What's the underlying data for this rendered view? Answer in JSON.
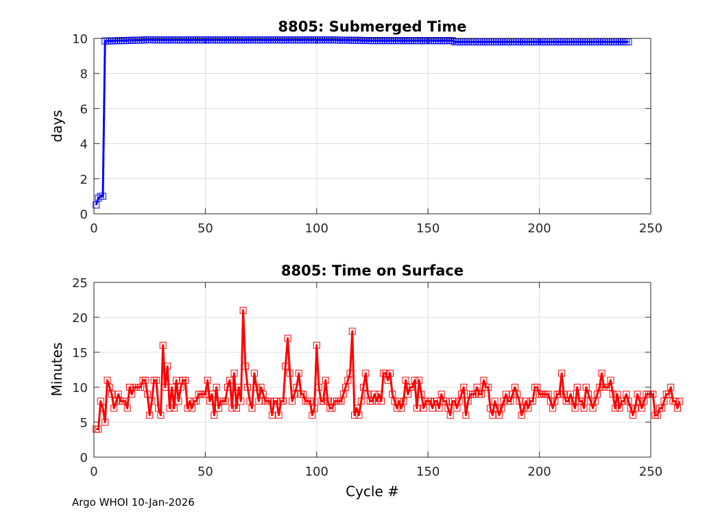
{
  "footer": "Argo WHOI 10-Jan-2026",
  "chart_data": [
    {
      "type": "line",
      "title": "8805: Submerged Time",
      "xlabel": "",
      "ylabel": "days",
      "xlim": [
        0,
        250
      ],
      "ylim": [
        0,
        10
      ],
      "xticks": [
        0,
        50,
        100,
        150,
        200,
        250
      ],
      "yticks": [
        0,
        2,
        4,
        6,
        8,
        10
      ],
      "grid": true,
      "series": [
        {
          "name": "Submerged Time",
          "color": "#0000ff",
          "marker": "square",
          "x_start": 1,
          "values": [
            0.5,
            0.9,
            1.0,
            1.0,
            9.85,
            9.85,
            9.85,
            9.86,
            9.86,
            9.87,
            9.87,
            9.87,
            9.88,
            9.88,
            9.88,
            9.89,
            9.89,
            9.89,
            9.9,
            9.9,
            9.9,
            9.91,
            9.91,
            9.92,
            9.92,
            9.92,
            9.91,
            9.91,
            9.91,
            9.91,
            9.91,
            9.91,
            9.91,
            9.91,
            9.91,
            9.91,
            9.91,
            9.91,
            9.91,
            9.91,
            9.91,
            9.91,
            9.91,
            9.91,
            9.91,
            9.91,
            9.91,
            9.91,
            9.91,
            9.91,
            9.91,
            9.91,
            9.91,
            9.91,
            9.91,
            9.91,
            9.91,
            9.91,
            9.91,
            9.91,
            9.91,
            9.91,
            9.91,
            9.91,
            9.91,
            9.91,
            9.91,
            9.91,
            9.91,
            9.91,
            9.91,
            9.91,
            9.91,
            9.91,
            9.91,
            9.91,
            9.91,
            9.91,
            9.91,
            9.91,
            9.91,
            9.91,
            9.91,
            9.91,
            9.91,
            9.91,
            9.91,
            9.91,
            9.91,
            9.91,
            9.91,
            9.91,
            9.91,
            9.91,
            9.91,
            9.91,
            9.91,
            9.91,
            9.91,
            9.91,
            9.91,
            9.91,
            9.91,
            9.91,
            9.91,
            9.91,
            9.91,
            9.91,
            9.91,
            9.9,
            9.9,
            9.9,
            9.9,
            9.9,
            9.89,
            9.89,
            9.89,
            9.89,
            9.89,
            9.88,
            9.88,
            9.88,
            9.88,
            9.88,
            9.87,
            9.87,
            9.87,
            9.87,
            9.87,
            9.87,
            9.87,
            9.87,
            9.87,
            9.87,
            9.87,
            9.87,
            9.87,
            9.87,
            9.87,
            9.87,
            9.87,
            9.87,
            9.87,
            9.87,
            9.87,
            9.87,
            9.87,
            9.87,
            9.87,
            9.87,
            9.87,
            9.87,
            9.87,
            9.87,
            9.87,
            9.87,
            9.87,
            9.87,
            9.87,
            9.87,
            9.87,
            9.8,
            9.8,
            9.8,
            9.8,
            9.8,
            9.8,
            9.8,
            9.8,
            9.8,
            9.8,
            9.8,
            9.8,
            9.8,
            9.8,
            9.8,
            9.8,
            9.8,
            9.8,
            9.8,
            9.8,
            9.8,
            9.8,
            9.8,
            9.8,
            9.8,
            9.8,
            9.8,
            9.8,
            9.8,
            9.8,
            9.8,
            9.8,
            9.8,
            9.8,
            9.8,
            9.8,
            9.8,
            9.8,
            9.8,
            9.8,
            9.8,
            9.8,
            9.8,
            9.8,
            9.8,
            9.8,
            9.8,
            9.8,
            9.8,
            9.8,
            9.8,
            9.8,
            9.8,
            9.8,
            9.8,
            9.8,
            9.8,
            9.8,
            9.8,
            9.8,
            9.8,
            9.8,
            9.8,
            9.8,
            9.8,
            9.8,
            9.8,
            9.8,
            9.8,
            9.8,
            9.8,
            9.8,
            9.8,
            9.8,
            9.8,
            9.8,
            9.8,
            9.8,
            9.8
          ]
        }
      ]
    },
    {
      "type": "line",
      "title": "8805: Time on Surface",
      "xlabel": "Cycle #",
      "ylabel": "Minutes",
      "xlim": [
        0,
        250
      ],
      "ylim": [
        0,
        25
      ],
      "xticks": [
        0,
        50,
        100,
        150,
        200,
        250
      ],
      "yticks": [
        0,
        5,
        10,
        15,
        20,
        25
      ],
      "grid": true,
      "series": [
        {
          "name": "Time on Surface",
          "color": "#ff0000",
          "marker": "square",
          "x_start": 1,
          "values": [
            4,
            4,
            8,
            7,
            5,
            11,
            10,
            9,
            7,
            8,
            9,
            8,
            8,
            8,
            7,
            10,
            9,
            10,
            10,
            10,
            10,
            11,
            11,
            9,
            6,
            8,
            11,
            11,
            7,
            6,
            16,
            10,
            13,
            7,
            10,
            7,
            11,
            8,
            10,
            11,
            11,
            7,
            8,
            7,
            8,
            8,
            9,
            9,
            9,
            9,
            11,
            8,
            9,
            6,
            10,
            7,
            8,
            8,
            8,
            10,
            11,
            7,
            12,
            7,
            10,
            8,
            21,
            13,
            10,
            8,
            7,
            12,
            10,
            8,
            10,
            9,
            8,
            8,
            8,
            6,
            8,
            8,
            6,
            8,
            8,
            13,
            17,
            12,
            8,
            9,
            10,
            12,
            9,
            9,
            8,
            8,
            8,
            6,
            7,
            16,
            10,
            8,
            8,
            11,
            8,
            7,
            7,
            8,
            8,
            8,
            8,
            9,
            10,
            11,
            12,
            18,
            6,
            7,
            6,
            8,
            10,
            12,
            9,
            8,
            8,
            9,
            8,
            9,
            8,
            12,
            12,
            11,
            12,
            9,
            8,
            7,
            8,
            7,
            8,
            11,
            9,
            10,
            10,
            11,
            7,
            11,
            9,
            7,
            8,
            8,
            8,
            7,
            8,
            8,
            7,
            9,
            8,
            8,
            7,
            6,
            8,
            8,
            7,
            8,
            9,
            10,
            6,
            8,
            9,
            9,
            9,
            10,
            9,
            9,
            11,
            10,
            10,
            7,
            6,
            8,
            7,
            6,
            7,
            8,
            9,
            8,
            8,
            9,
            10,
            9,
            8,
            6,
            7,
            8,
            7,
            8,
            8,
            10,
            10,
            9,
            9,
            9,
            9,
            9,
            8,
            7,
            8,
            9,
            9,
            12,
            9,
            8,
            8,
            9,
            8,
            7,
            10,
            8,
            8,
            7,
            10,
            9,
            8,
            7,
            8,
            9,
            10,
            12,
            10,
            10,
            10,
            11,
            9,
            7,
            9,
            7,
            8,
            8,
            9,
            8,
            7,
            6,
            7,
            9,
            8,
            7,
            8,
            9,
            9,
            9,
            9,
            6,
            6,
            7,
            7,
            8,
            9,
            9,
            10,
            8,
            8,
            7,
            8
          ]
        }
      ]
    }
  ]
}
